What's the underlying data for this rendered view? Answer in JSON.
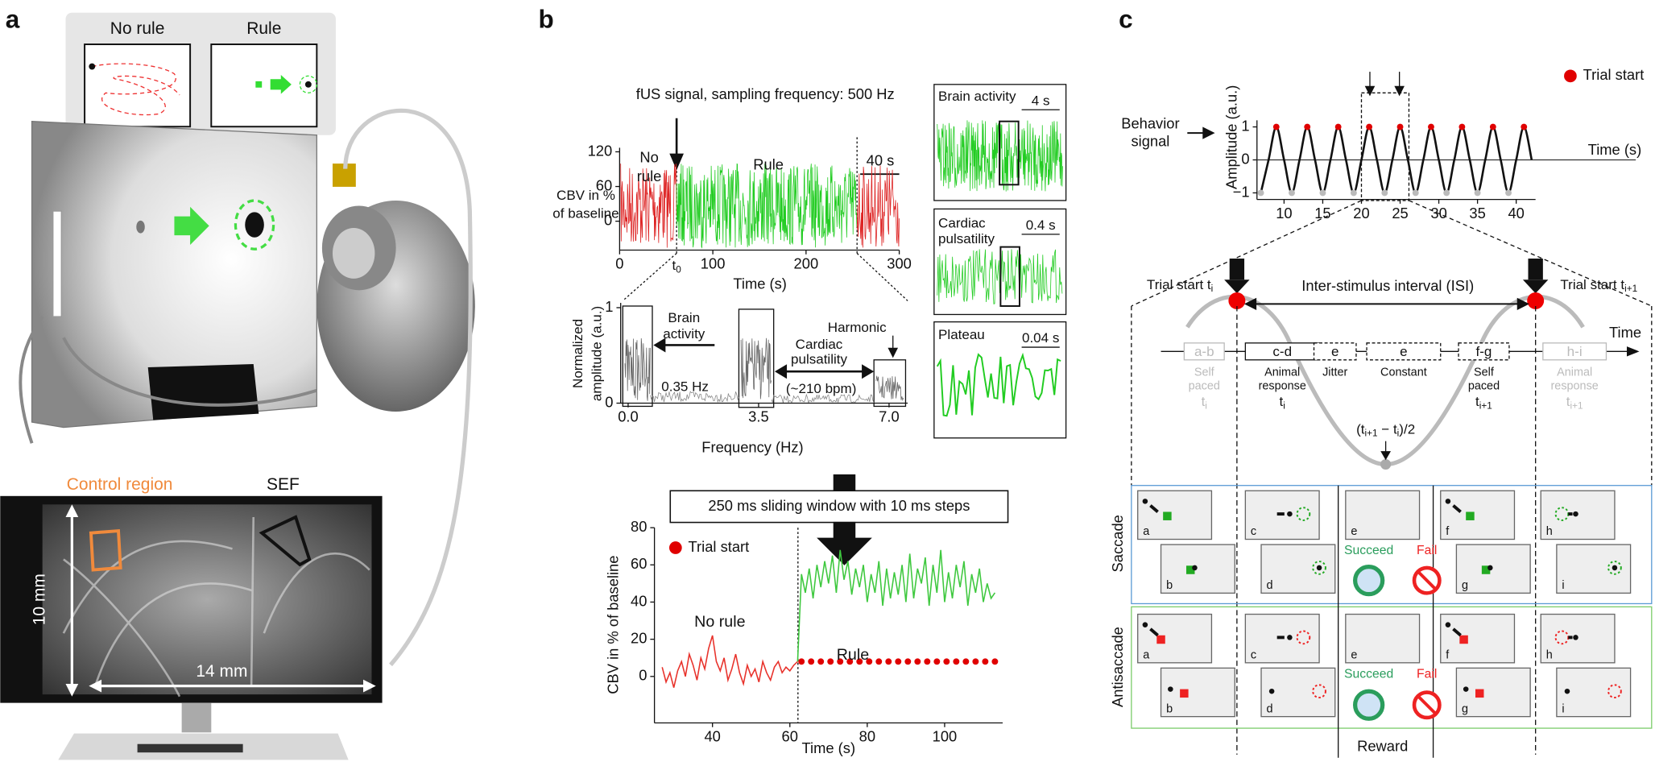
{
  "panel_labels": [
    "a",
    "b",
    "c"
  ],
  "panel_a": {
    "inset": {
      "no_rule": "No rule",
      "rule": "Rule"
    },
    "control_region": "Control region",
    "sef": "SEF",
    "height": "10 mm",
    "width": "14 mm"
  },
  "panel_b": {
    "fus_title": "fUS signal, sampling frequency: 500 Hz",
    "fus_ylabel": [
      "CBV in %",
      "of baseline"
    ],
    "fus_annotations": {
      "no_rule": [
        "No",
        "rule"
      ],
      "rule": "Rule",
      "scale": "40 s",
      "t0": {
        "main": "t",
        "sub": "0"
      }
    },
    "spectrum_ylabel": [
      "Normalized",
      "amplitude (a.u.)"
    ],
    "spectrum_annotations": {
      "brain": [
        "Brain",
        "activity"
      ],
      "brain_freq": "0.35 Hz",
      "cardiac": [
        "Cardiac",
        "pulsatility"
      ],
      "cardiac_rate": "(~210 bpm)",
      "harmonic": "Harmonic"
    },
    "insets": [
      {
        "title": [
          "Brain activity"
        ],
        "scale": "4 s"
      },
      {
        "title": [
          "Cardiac",
          "pulsatility"
        ],
        "scale": "0.4 s"
      },
      {
        "title": [
          "Plateau"
        ],
        "scale": "0.04 s"
      }
    ],
    "window": "250 ms sliding window with 10 ms steps"
  },
  "chart_data": [
    {
      "type": "line",
      "xlabel": "Time (s)",
      "xlim": [
        0,
        300
      ],
      "xticks": [
        0,
        100,
        200,
        300
      ],
      "ylim": [
        -50,
        127
      ],
      "yticks": [
        0,
        60,
        120
      ]
    },
    {
      "type": "line",
      "xlabel": "Frequency (Hz)",
      "xlim": [
        -0.2,
        7.5
      ],
      "xticks": [
        {
          "value": 0,
          "label": "0.0"
        },
        3.5,
        {
          "value": 7,
          "label": "7.0"
        }
      ],
      "ylim": [
        0,
        1.05
      ],
      "yticks": [
        0,
        1
      ]
    },
    {
      "type": "line",
      "xlabel": "Time (s)",
      "ylabel": "CBV in % of baseline",
      "xlim": [
        25,
        115
      ],
      "xticks": [
        40,
        60,
        80,
        100
      ],
      "ylim": [
        -25,
        80
      ],
      "yticks": [
        0,
        20,
        40,
        60,
        80
      ],
      "legend": "upper left",
      "series": [
        {
          "name": "No rule",
          "color": "#e8322b",
          "x": [
            27,
            28,
            29,
            30,
            31,
            32,
            33,
            34,
            35,
            36,
            37,
            38,
            39,
            40,
            41,
            42,
            43,
            44,
            45,
            46,
            47,
            48,
            49,
            50,
            51,
            52,
            53,
            54,
            55,
            56,
            57,
            58,
            59,
            60,
            61,
            62
          ],
          "values": [
            5,
            -3,
            2,
            -6,
            3,
            8,
            0,
            12,
            6,
            -2,
            10,
            4,
            15,
            22,
            8,
            3,
            10,
            -2,
            4,
            12,
            2,
            -4,
            6,
            0,
            4,
            -3,
            8,
            2,
            -2,
            5,
            8,
            2,
            5,
            3,
            6,
            8
          ]
        },
        {
          "name": "Rule",
          "color": "#3ec83e",
          "x": [
            62,
            63,
            64,
            65,
            66,
            67,
            68,
            69,
            70,
            71,
            72,
            73,
            74,
            75,
            76,
            77,
            78,
            79,
            80,
            81,
            82,
            83,
            84,
            85,
            86,
            87,
            88,
            89,
            90,
            91,
            92,
            93,
            94,
            95,
            96,
            97,
            98,
            99,
            100,
            101,
            102,
            103,
            104,
            105,
            106,
            107,
            108,
            109,
            110,
            111,
            112,
            113
          ],
          "values": [
            8,
            55,
            45,
            58,
            42,
            60,
            48,
            62,
            50,
            65,
            45,
            68,
            52,
            62,
            44,
            58,
            48,
            60,
            40,
            55,
            45,
            62,
            38,
            58,
            42,
            56,
            44,
            60,
            40,
            66,
            42,
            58,
            50,
            64,
            38,
            60,
            45,
            68,
            40,
            56,
            42,
            60,
            48,
            62,
            38,
            55,
            45,
            58,
            40,
            50,
            42,
            45
          ]
        },
        {
          "name": "Trial start",
          "color": "#e00000",
          "style": "dots",
          "x": [
            63,
            65.5,
            68,
            70.5,
            73,
            75.5,
            78,
            80.5,
            83,
            85.5,
            88,
            90.5,
            93,
            95.5,
            98,
            100.5,
            103,
            105.5,
            108,
            110.5,
            113
          ],
          "values": [
            8,
            8,
            8,
            8,
            8,
            8,
            8,
            8,
            8,
            8,
            8,
            8,
            8,
            8,
            8,
            8,
            8,
            8,
            8,
            8,
            8
          ]
        }
      ]
    },
    {
      "type": "line",
      "xlabel": "Time (s)",
      "ylabel": "Amplitude (a.u.)",
      "xlim": [
        6.5,
        42.5
      ],
      "xticks": [
        10,
        15,
        20,
        25,
        30,
        35,
        40
      ],
      "ylim": [
        -1.2,
        1.2
      ],
      "yticks": [
        1,
        0,
        {
          "value": -1,
          "label": "−1"
        }
      ],
      "legend": "upper right",
      "zero_line": true,
      "series": [
        {
          "color": "#111111",
          "smooth": true,
          "x": [
            7,
            8,
            9,
            10,
            11,
            12,
            13,
            14,
            15,
            16,
            17,
            18,
            19,
            20,
            21,
            22,
            23,
            24,
            25,
            26,
            27,
            28,
            29,
            30,
            31,
            32,
            33,
            34,
            35,
            36,
            37,
            38,
            39,
            40,
            41,
            42
          ],
          "values": [
            -1,
            0,
            1,
            0,
            -1,
            0,
            1,
            0,
            -1,
            0,
            1,
            0,
            -1,
            0,
            1,
            0,
            -1,
            0,
            1,
            0,
            -1,
            0,
            1,
            0,
            -1,
            0,
            1,
            0,
            -1,
            0,
            1,
            0,
            -1,
            0,
            1,
            0
          ]
        },
        {
          "name": "Trial start",
          "color": "#e00000",
          "style": "dots",
          "x": [
            9,
            13,
            17,
            21,
            25,
            29,
            33,
            37,
            41
          ],
          "values": [
            1,
            1,
            1,
            1,
            1,
            1,
            1,
            1,
            1
          ]
        },
        {
          "color": "#bbbbbb",
          "style": "dots",
          "x": [
            7,
            11,
            15,
            19,
            23,
            27,
            31,
            35,
            39
          ],
          "values": [
            -1,
            -1,
            -1,
            -1,
            -1,
            -1,
            -1,
            -1,
            -1
          ]
        }
      ]
    }
  ],
  "panel_c": {
    "behavior": [
      "Behavior",
      "signal"
    ],
    "trial_start_i": {
      "main": "Trial start t",
      "sub": "i"
    },
    "trial_start_next": {
      "main": "Trial start t",
      "sub": "i+1"
    },
    "isi": "Inter-stimulus interval (ISI)",
    "time": "Time",
    "phases": [
      {
        "label": "a-b",
        "desc": [
          "Self",
          "paced"
        ],
        "t": {
          "main": "t",
          "sub": "i"
        }
      },
      {
        "label": "c-d",
        "desc": [
          "Animal",
          "response"
        ],
        "t": {
          "main": "t",
          "sub": "i"
        }
      },
      {
        "label": "e",
        "desc": [
          "Jitter"
        ]
      },
      {
        "label": "e",
        "desc": [
          "Constant"
        ]
      },
      {
        "label": "f-g",
        "desc": [
          "Self",
          "paced"
        ],
        "t": {
          "main": "t",
          "sub": "i+1"
        }
      },
      {
        "label": "h-i",
        "desc": [
          "Animal",
          "response"
        ],
        "t": {
          "main": "t",
          "sub": "i+1"
        }
      }
    ],
    "half": [
      "(t",
      "i+1",
      " − t",
      "i",
      ")/2"
    ],
    "rows": [
      "Saccade",
      "Antisaccade"
    ],
    "frames": [
      "a",
      "b",
      "c",
      "d",
      "e",
      "f",
      "g",
      "h",
      "i"
    ],
    "succeed": "Succeed",
    "fail": "Fail",
    "reward": "Reward"
  }
}
